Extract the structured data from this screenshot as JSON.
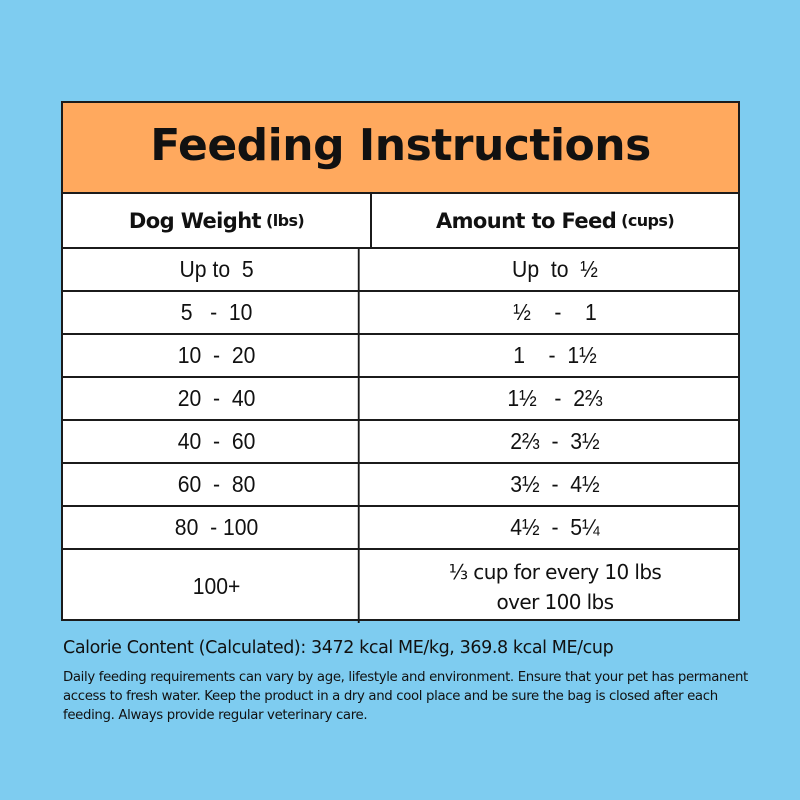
{
  "colors": {
    "background": "#7ECCF0",
    "title_bar": "#FFA95E",
    "table_background": "#FFFFFF",
    "border": "#1B1B1B",
    "text": "#111111"
  },
  "title": "Feeding Instructions",
  "table": {
    "headers": [
      {
        "label": "Dog Weight",
        "unit": "(lbs)"
      },
      {
        "label": "Amount to Feed",
        "unit": "(cups)"
      }
    ],
    "rows": [
      {
        "weight": "Up to  5",
        "amount": "Up  to  ½"
      },
      {
        "weight": "5   -  10",
        "amount": "½    -    1"
      },
      {
        "weight": "10  -  20",
        "amount": "1    -  1½"
      },
      {
        "weight": "20  -  40",
        "amount": "1½   -  2⅔"
      },
      {
        "weight": "40  -  60",
        "amount": "2⅔  -  3½"
      },
      {
        "weight": "60  -  80",
        "amount": "3½  -  4½"
      },
      {
        "weight": "80  - 100",
        "amount": "4½  -  5¼"
      }
    ],
    "last_row": {
      "weight": "100+",
      "amount_line1": "⅓ cup for every 10 lbs",
      "amount_line2": "over 100 lbs"
    }
  },
  "calorie_content": "Calorie Content (Calculated): 3472 kcal ME/kg, 369.8 kcal ME/cup",
  "note": "Daily feeding requirements can vary by age, lifestyle and environment. Ensure that your pet has permanent access to fresh water. Keep the product in a dry and cool place and be sure the bag is closed after each feeding. Always provide regular veterinary care."
}
